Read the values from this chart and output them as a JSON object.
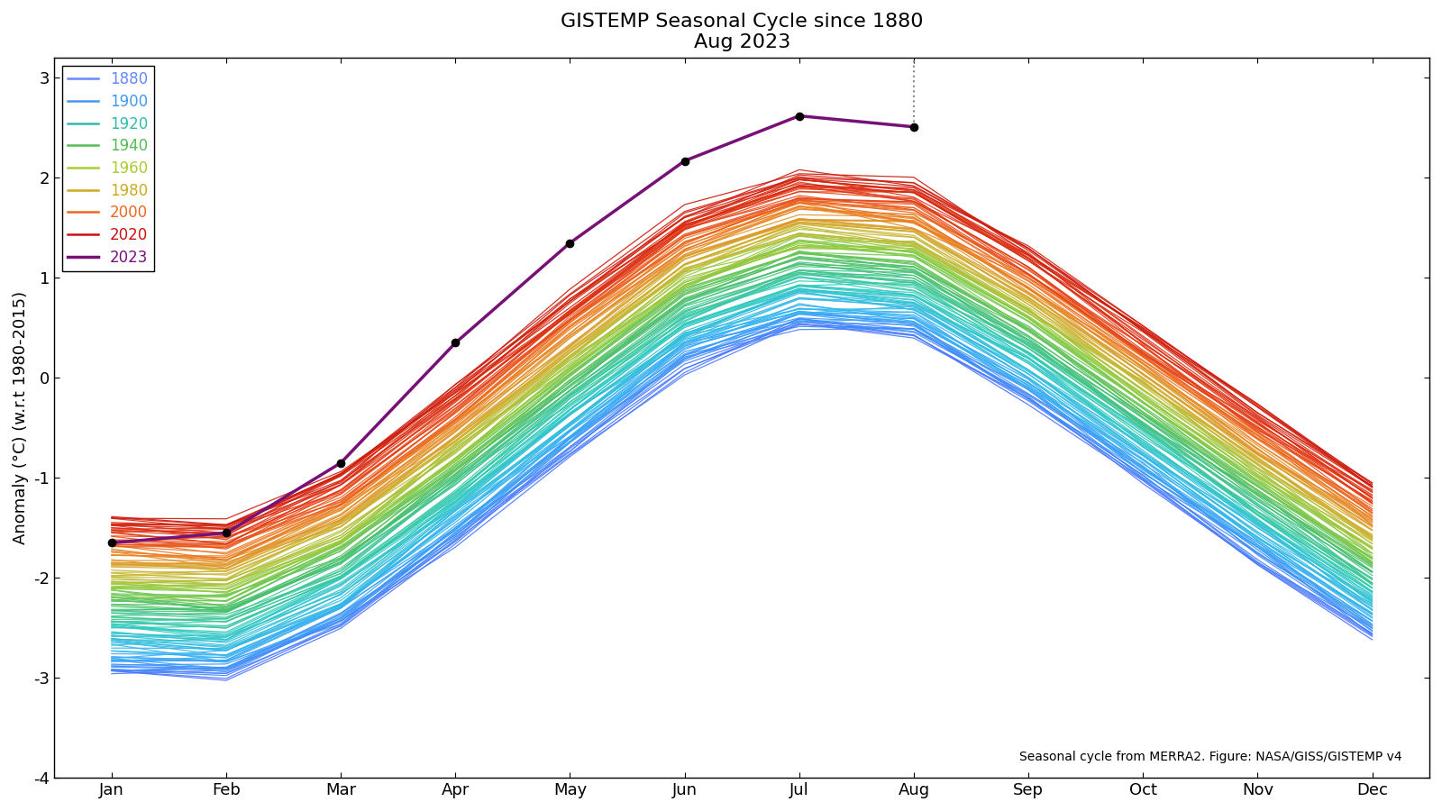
{
  "title_line1": "GISTEMP Seasonal Cycle since 1880",
  "title_line2": "Aug 2023",
  "ylabel": "Anomaly (°C) (w.r.t 1980-2015)",
  "xlabel_months": [
    "Jan",
    "Feb",
    "Mar",
    "Apr",
    "May",
    "Jun",
    "Jul",
    "Aug",
    "Sep",
    "Oct",
    "Nov",
    "Dec"
  ],
  "ylim": [
    -4.0,
    3.2
  ],
  "yticks": [
    -4,
    -3,
    -2,
    -1,
    0,
    1,
    2,
    3
  ],
  "ytick_labels": [
    "-4",
    "-3",
    "-2",
    "-1",
    "0",
    "1",
    "2",
    "3"
  ],
  "footnote": "Seasonal cycle from MERRA2. Figure: NASA/GISS/GISTEMP v4",
  "start_year": 1880,
  "end_year": 2023,
  "legend_years": [
    1880,
    1900,
    1920,
    1940,
    1960,
    1980,
    2000,
    2020,
    2023
  ],
  "legend_colors": [
    "#6688ff",
    "#4499ee",
    "#33bbaa",
    "#55bb55",
    "#aacc33",
    "#ccaa22",
    "#ee6622",
    "#cc1111",
    "#771177"
  ],
  "background_color": "#ffffff",
  "title_fontsize": 16,
  "label_fontsize": 13,
  "tick_fontsize": 13,
  "legend_fontsize": 12,
  "dot_months": [
    0,
    1,
    2,
    3,
    4,
    5,
    6,
    7
  ],
  "curve_2023_values": [
    -1.65,
    -1.55,
    -0.85,
    0.35,
    1.35,
    2.17,
    2.62,
    2.51
  ],
  "dotted_line_color": "#888888"
}
